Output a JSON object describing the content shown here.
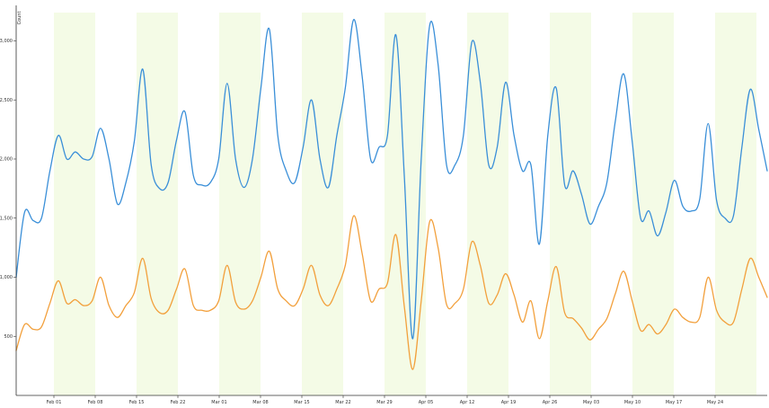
{
  "chart_data": {
    "type": "line",
    "title": "",
    "xlabel": "",
    "ylabel": "Count",
    "ylim": [
      0,
      3300
    ],
    "y_ticks": [
      500,
      1000,
      1500,
      2000,
      2500,
      3000
    ],
    "y_tick_labels": [
      "500",
      "1,000",
      "1,500",
      "2,000",
      "2,500",
      "3,000"
    ],
    "x_tick_labels": [
      "Feb 01",
      "Feb 08",
      "Feb 15",
      "Feb 22",
      "Mar 01",
      "Mar 08",
      "Mar 15",
      "Mar 22",
      "Mar 29",
      "Apr 05",
      "Apr 12",
      "Apr 19",
      "Apr 26",
      "May 03",
      "May 10",
      "May 17",
      "May 24"
    ],
    "x_start_label": "Feb 01",
    "x_end_label": "May 24",
    "shaded_bands": {
      "color": "#f4fbe6",
      "count": 9
    },
    "grid": false,
    "legend": "none",
    "series": [
      {
        "color": "#3a8fd8",
        "values": [
          1000,
          1550,
          1480,
          1500,
          1900,
          2200,
          2000,
          2060,
          2000,
          2020,
          2260,
          2000,
          1620,
          1800,
          2150,
          2760,
          1950,
          1750,
          1800,
          2160,
          2400,
          1860,
          1780,
          1800,
          2000,
          2640,
          2000,
          1760,
          2000,
          2600,
          3100,
          2200,
          1900,
          1800,
          2100,
          2500,
          2000,
          1760,
          2200,
          2600,
          3180,
          2700,
          2000,
          2100,
          2200,
          3050,
          1850,
          480,
          2000,
          3130,
          2800,
          1950,
          1950,
          2200,
          2990,
          2650,
          1950,
          2100,
          2650,
          2200,
          1900,
          1950,
          1280,
          2200,
          2600,
          1780,
          1900,
          1700,
          1450,
          1600,
          1800,
          2320,
          2720,
          2150,
          1500,
          1560,
          1350,
          1550,
          1820,
          1600,
          1560,
          1660,
          2300,
          1650,
          1500,
          1520,
          2100,
          2590,
          2250,
          1900
        ]
      },
      {
        "color": "#f2a03c",
        "values": [
          380,
          600,
          560,
          580,
          780,
          970,
          780,
          810,
          760,
          800,
          1000,
          760,
          660,
          760,
          870,
          1160,
          820,
          700,
          720,
          900,
          1070,
          760,
          720,
          720,
          800,
          1100,
          790,
          730,
          800,
          1000,
          1220,
          900,
          800,
          760,
          900,
          1100,
          850,
          760,
          900,
          1100,
          1520,
          1200,
          800,
          900,
          950,
          1360,
          750,
          220,
          800,
          1470,
          1250,
          770,
          780,
          900,
          1300,
          1100,
          780,
          850,
          1030,
          850,
          620,
          800,
          480,
          800,
          1090,
          700,
          650,
          570,
          470,
          560,
          650,
          860,
          1050,
          800,
          550,
          600,
          520,
          600,
          730,
          660,
          620,
          660,
          1000,
          720,
          620,
          620,
          900,
          1160,
          1000,
          830
        ]
      }
    ]
  }
}
